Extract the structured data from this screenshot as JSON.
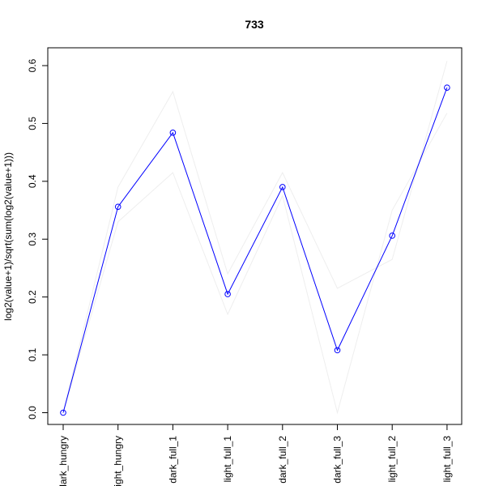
{
  "chart_data": {
    "type": "line",
    "title": "733",
    "xlabel": "",
    "ylabel": "log2(value+1)/sqrt(sum(log2(value+1)))",
    "categories": [
      "dark_hungry",
      "light_hungry",
      "dark_full_1",
      "light_full_1",
      "dark_full_2",
      "dark_full_3",
      "light_full_2",
      "light_full_3"
    ],
    "ylim": [
      0.0,
      0.6
    ],
    "yticks": [
      "0.0",
      "0.1",
      "0.2",
      "0.3",
      "0.4",
      "0.5",
      "0.6"
    ],
    "grid": false,
    "series": [
      {
        "values": [
          0.0,
          0.356,
          0.484,
          0.205,
          0.39,
          0.108,
          0.306,
          0.562
        ],
        "color": "#0000ff",
        "markers": "open-circle"
      },
      {
        "values": [
          0.0,
          0.39,
          0.555,
          0.24,
          0.415,
          0.215,
          0.265,
          0.608
        ],
        "color": "#eeeeee"
      },
      {
        "values": [
          0.0,
          0.33,
          0.415,
          0.17,
          0.375,
          0.0,
          0.35,
          0.518
        ],
        "color": "#eeeeee"
      }
    ]
  }
}
